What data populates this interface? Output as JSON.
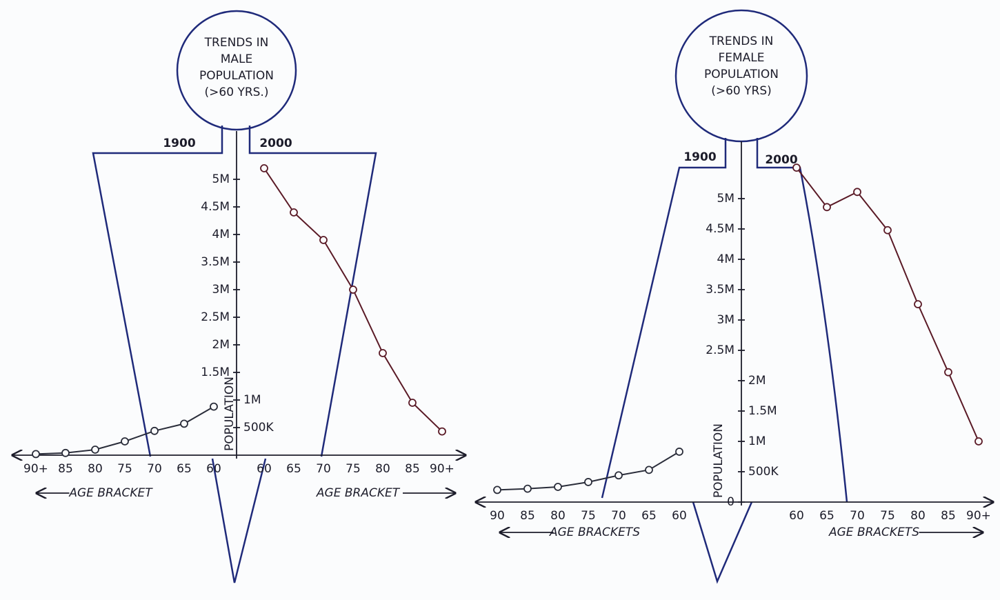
{
  "chart_data": [
    {
      "type": "line",
      "title": [
        "TRENDS IN",
        "MALE",
        "POPULATION",
        "(>60 YRS.)"
      ],
      "ylabel": "POPULATION",
      "x_label_left": "AGE BRACKET",
      "x_label_right": "AGE BRACKET",
      "ylim": [
        0,
        5500000
      ],
      "yticks": [
        {
          "value": 500000,
          "label": "500K"
        },
        {
          "value": 1000000,
          "label": "1M"
        },
        {
          "value": 1500000,
          "label": "1.5M"
        },
        {
          "value": 2000000,
          "label": "2M"
        },
        {
          "value": 2500000,
          "label": "2.5M"
        },
        {
          "value": 3000000,
          "label": "3M"
        },
        {
          "value": 3500000,
          "label": "3.5M"
        },
        {
          "value": 4000000,
          "label": "4M"
        },
        {
          "value": 4500000,
          "label": "4.5M"
        },
        {
          "value": 5000000,
          "label": "5M"
        }
      ],
      "series": [
        {
          "name": "1900",
          "color": "#2a2d3a",
          "side": "left",
          "categories": [
            "60",
            "65",
            "70",
            "75",
            "80",
            "85",
            "90+"
          ],
          "values": [
            880000,
            570000,
            440000,
            250000,
            100000,
            40000,
            20000
          ]
        },
        {
          "name": "2000",
          "color": "#5a1a26",
          "side": "right",
          "categories": [
            "60",
            "65",
            "70",
            "75",
            "80",
            "85",
            "90+"
          ],
          "values": [
            5200000,
            4400000,
            3900000,
            3000000,
            1850000,
            950000,
            430000
          ]
        }
      ]
    },
    {
      "type": "line",
      "title": [
        "TRENDS IN",
        "FEMALE",
        "POPULATION",
        "(>60 YRS)"
      ],
      "ylabel": "POPULATION",
      "x_label_left": "AGE BRACKETS",
      "x_label_right": "AGE BRACKETS",
      "ylim": [
        0,
        5500000
      ],
      "yticks": [
        {
          "value": 0,
          "label": "0"
        },
        {
          "value": 500000,
          "label": "500K"
        },
        {
          "value": 1000000,
          "label": "1M"
        },
        {
          "value": 1500000,
          "label": "1.5M"
        },
        {
          "value": 2000000,
          "label": "2M"
        },
        {
          "value": 2500000,
          "label": "2.5M"
        },
        {
          "value": 3000000,
          "label": "3M"
        },
        {
          "value": 3500000,
          "label": "3.5M"
        },
        {
          "value": 4000000,
          "label": "4M"
        },
        {
          "value": 4500000,
          "label": "4.5M"
        },
        {
          "value": 5000000,
          "label": "5M"
        }
      ],
      "series": [
        {
          "name": "1900",
          "color": "#2a2d3a",
          "side": "left",
          "categories": [
            "60",
            "65",
            "70",
            "75",
            "80",
            "85",
            "90"
          ],
          "values": [
            830000,
            530000,
            440000,
            330000,
            250000,
            220000,
            200000
          ]
        },
        {
          "name": "2000",
          "color": "#5a1a26",
          "side": "right",
          "categories": [
            "60",
            "65",
            "70",
            "75",
            "80",
            "85",
            "90+"
          ],
          "values": [
            5510000,
            4860000,
            5110000,
            4480000,
            3260000,
            2140000,
            1000000
          ]
        }
      ]
    }
  ]
}
